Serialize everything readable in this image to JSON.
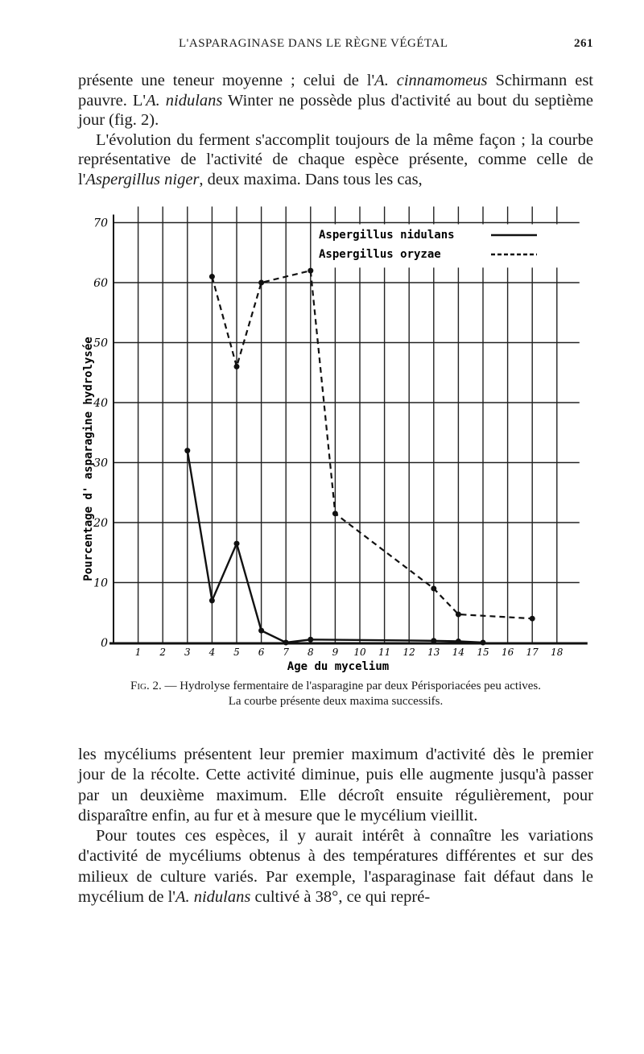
{
  "header": {
    "title": "L'ASPARAGINASE DANS LE RÈGNE VÉGÉTAL",
    "page_number": "261"
  },
  "top_text": {
    "p1": [
      {
        "t": "présente une teneur moyenne ; celui de l'"
      },
      {
        "t": "A. cinnamomeus",
        "i": true
      },
      {
        "t": " Schirmann est pauvre. L'"
      },
      {
        "t": "A. nidulans",
        "i": true
      },
      {
        "t": " Winter ne possède plus d'activité au bout du septième jour (fig. 2)."
      }
    ],
    "p2": [
      {
        "t": "L'évolution du ferment s'accomplit toujours de la même façon ; la courbe représentative de l'activité de chaque espèce présente, comme celle de l'"
      },
      {
        "t": "Aspergillus niger",
        "i": true
      },
      {
        "t": ", deux maxima. Dans tous les cas,"
      }
    ]
  },
  "chart_data": {
    "type": "line",
    "title": "",
    "xlabel": "Age du mycelium",
    "ylabel": "Pourcentage d' asparagine hydrolysée",
    "xlim": [
      0,
      18
    ],
    "ylim": [
      0,
      70
    ],
    "x_ticks": [
      "1",
      "2",
      "3",
      "4",
      "5",
      "6",
      "7",
      "8",
      "9",
      "10",
      "11",
      "12",
      "13",
      "14",
      "15",
      "16",
      "17",
      "18"
    ],
    "y_ticks": [
      "0",
      "10",
      "20",
      "30",
      "40",
      "50",
      "60",
      "70"
    ],
    "grid": true,
    "legend_position": "top-right",
    "series": [
      {
        "name": "Aspergillus nidulans",
        "style": "solid",
        "x": [
          3,
          4,
          5,
          6,
          7,
          8,
          13,
          14,
          15
        ],
        "y": [
          32,
          7,
          16.5,
          2,
          0,
          0.5,
          0.3,
          0.2,
          0
        ]
      },
      {
        "name": "Aspergillus oryzae",
        "style": "dashed",
        "x": [
          4,
          5,
          6,
          8,
          9,
          13,
          14,
          17
        ],
        "y": [
          61,
          46,
          60,
          62,
          21.5,
          9,
          4.7,
          4
        ]
      }
    ]
  },
  "caption": {
    "label": "Fig. 2.",
    "text": " — Hydrolyse fermentaire de l'asparagine par deux Périsporiacées peu actives.",
    "line2": "La courbe présente deux maxima successifs."
  },
  "bottom_text": {
    "p1": [
      {
        "t": "les mycéliums présentent leur premier maximum d'activité dès le premier jour de la récolte. Cette activité diminue, puis elle augmente jusqu'à passer par un deuxième maximum. Elle décroît ensuite régulièrement, pour disparaître enfin, au fur et à mesure que le mycélium vieillit."
      }
    ],
    "p2": [
      {
        "t": "Pour toutes ces espèces, il y aurait intérêt à connaître les variations d'activité de mycéliums obtenus à des températures différentes et sur des milieux de culture variés. Par exemple, l'asparaginase fait défaut dans le mycélium de l'"
      },
      {
        "t": "A. nidulans",
        "i": true
      },
      {
        "t": " cultivé à 38°, ce qui repré-"
      }
    ]
  }
}
